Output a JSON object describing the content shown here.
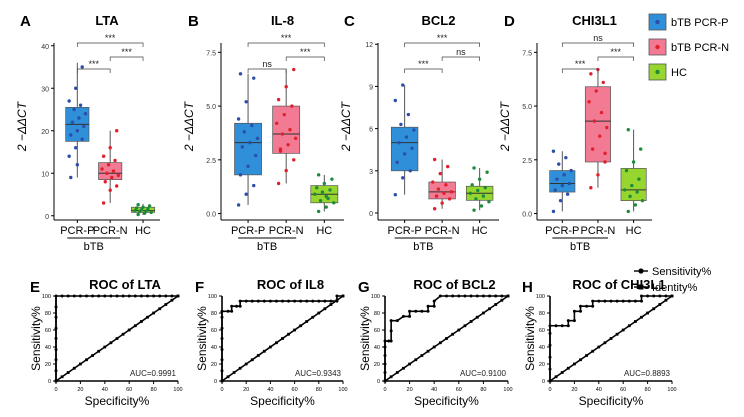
{
  "legend": {
    "items": [
      {
        "label": "bTB PCR-P",
        "color": "#2f8fd8",
        "dot": "#2b4fa8"
      },
      {
        "label": "bTB PCR-N",
        "color": "#f27a93",
        "dot": "#e2202c"
      },
      {
        "label": "HC",
        "color": "#96d62f",
        "dot": "#1f8b3a"
      }
    ]
  },
  "roc_legend": {
    "sensitivity": "Sensitivity%",
    "identity": "Identity%"
  },
  "chart_data": [
    {
      "type": "box",
      "panel": "A",
      "title": "LTA",
      "ylabel": "2 −ΔΔCT",
      "ylim": [
        -1,
        43
      ],
      "yticks": [
        "0",
        "10",
        "20",
        "30",
        "40"
      ],
      "ytick_values": [
        0,
        10,
        20,
        30,
        40
      ],
      "categories": [
        "PCR-P",
        "PCR-N",
        "HC"
      ],
      "group_label": "bTB",
      "boxes": [
        {
          "q1": 17.5,
          "median": 21.5,
          "q3": 25.5,
          "min": 9,
          "max": 36
        },
        {
          "q1": 8.5,
          "median": 10,
          "q3": 12.5,
          "min": 3,
          "max": 20
        },
        {
          "q1": 0.8,
          "median": 1.2,
          "q3": 2,
          "min": 0.2,
          "max": 2.8
        }
      ],
      "points": [
        [
          14,
          16,
          18,
          19,
          20,
          21,
          22,
          23,
          24,
          25,
          26,
          27,
          30,
          35,
          9,
          12
        ],
        [
          3,
          6,
          7,
          8,
          9,
          9.5,
          10,
          10.5,
          11,
          12,
          13,
          14,
          16,
          20
        ],
        [
          0.3,
          0.6,
          0.8,
          1,
          1.1,
          1.2,
          1.4,
          1.6,
          1.8,
          2,
          2.3,
          2.6
        ]
      ],
      "significance": [
        {
          "from": 0,
          "to": 2,
          "label": "***"
        },
        {
          "from": 0,
          "to": 1,
          "label": "***"
        },
        {
          "from": 1,
          "to": 2,
          "label": "***"
        }
      ]
    },
    {
      "type": "box",
      "panel": "B",
      "title": "IL-8",
      "ylabel": "2 −ΔΔCT",
      "ylim": [
        -0.3,
        8.4
      ],
      "yticks": [
        "0.0",
        "2.5",
        "5.0",
        "7.5"
      ],
      "ytick_values": [
        0,
        2.5,
        5,
        7.5
      ],
      "categories": [
        "PCR-P",
        "PCR-N",
        "HC"
      ],
      "group_label": "bTB",
      "boxes": [
        {
          "q1": 1.8,
          "median": 3.3,
          "q3": 4.2,
          "min": 0.4,
          "max": 6.5
        },
        {
          "q1": 2.8,
          "median": 3.7,
          "q3": 5,
          "min": 1.4,
          "max": 6.7
        },
        {
          "q1": 0.5,
          "median": 0.9,
          "q3": 1.3,
          "min": 0.1,
          "max": 1.8
        }
      ],
      "points": [
        [
          0.4,
          0.9,
          1.3,
          1.8,
          2.2,
          2.7,
          3.1,
          3.3,
          3.5,
          3.8,
          4.1,
          4.4,
          5.2,
          6.3,
          6.5
        ],
        [
          1.4,
          2.0,
          2.5,
          2.9,
          3.2,
          3.5,
          3.7,
          3.9,
          4.2,
          4.6,
          5.0,
          5.3,
          5.9,
          6.7,
          3.0
        ],
        [
          0.1,
          0.3,
          0.5,
          0.6,
          0.7,
          0.9,
          1.0,
          1.1,
          1.2,
          1.4,
          1.6,
          1.8,
          0.8
        ]
      ],
      "significance": [
        {
          "from": 0,
          "to": 2,
          "label": "***"
        },
        {
          "from": 0,
          "to": 1,
          "label": "ns"
        },
        {
          "from": 1,
          "to": 2,
          "label": "***"
        }
      ]
    },
    {
      "type": "box",
      "panel": "C",
      "title": "BCL2",
      "ylabel": "2 −ΔΔCT",
      "ylim": [
        -0.5,
        12.8
      ],
      "yticks": [
        "0",
        "3",
        "6",
        "9",
        "12"
      ],
      "ytick_values": [
        0,
        3,
        6,
        9,
        12
      ],
      "categories": [
        "PCR-P",
        "PCR-N",
        "HC"
      ],
      "group_label": "bTB",
      "boxes": [
        {
          "q1": 3,
          "median": 5,
          "q3": 6.1,
          "min": 1.3,
          "max": 9.1
        },
        {
          "q1": 1,
          "median": 1.5,
          "q3": 2.2,
          "min": 0.3,
          "max": 3.8
        },
        {
          "q1": 0.9,
          "median": 1.4,
          "q3": 1.9,
          "min": 0.2,
          "max": 3.2
        }
      ],
      "points": [
        [
          1.3,
          2.5,
          3.0,
          3.6,
          4.2,
          4.6,
          5.0,
          5.4,
          5.9,
          6.3,
          7.0,
          8.0,
          9.1
        ],
        [
          0.3,
          0.7,
          1.0,
          1.2,
          1.4,
          1.5,
          1.7,
          2.0,
          2.2,
          2.8,
          3.3,
          3.8
        ],
        [
          0.2,
          0.5,
          0.8,
          1.0,
          1.2,
          1.4,
          1.6,
          1.8,
          2.0,
          2.4,
          2.9,
          3.2
        ]
      ],
      "significance": [
        {
          "from": 0,
          "to": 2,
          "label": "***"
        },
        {
          "from": 0,
          "to": 1,
          "label": "***"
        },
        {
          "from": 1,
          "to": 2,
          "label": "ns"
        }
      ]
    },
    {
      "type": "box",
      "panel": "D",
      "title": "CHI3L1",
      "ylabel": "2 −ΔΔCT",
      "ylim": [
        -0.3,
        8.4
      ],
      "yticks": [
        "0.0",
        "2.5",
        "5.0",
        "7.5"
      ],
      "ytick_values": [
        0,
        2.5,
        5,
        7.5
      ],
      "categories": [
        "PCR-P",
        "PCR-N",
        "HC"
      ],
      "group_label": "bTB",
      "boxes": [
        {
          "q1": 1.0,
          "median": 1.4,
          "q3": 2.0,
          "min": 0.1,
          "max": 2.9
        },
        {
          "q1": 2.4,
          "median": 4.3,
          "q3": 5.9,
          "min": 1.2,
          "max": 6.7
        },
        {
          "q1": 0.6,
          "median": 1.1,
          "q3": 2.1,
          "min": 0.1,
          "max": 3.9
        }
      ],
      "points": [
        [
          0.1,
          0.6,
          0.9,
          1.1,
          1.3,
          1.4,
          1.6,
          1.8,
          2.0,
          2.3,
          2.6,
          2.9
        ],
        [
          1.2,
          1.8,
          2.4,
          3.0,
          3.6,
          4.0,
          4.3,
          4.7,
          5.2,
          5.7,
          6.1,
          6.5,
          6.7,
          2.8
        ],
        [
          0.1,
          0.4,
          0.6,
          0.8,
          1.0,
          1.1,
          1.3,
          1.6,
          2.0,
          2.4,
          3.0,
          3.9
        ]
      ],
      "significance": [
        {
          "from": 0,
          "to": 2,
          "label": "ns"
        },
        {
          "from": 0,
          "to": 1,
          "label": "***"
        },
        {
          "from": 1,
          "to": 2,
          "label": "***"
        }
      ]
    },
    {
      "type": "line",
      "panel": "E",
      "title": "ROC of LTA",
      "xlabel": "Specificity%",
      "ylabel": "Sensitivity%",
      "xlim": [
        0,
        100
      ],
      "ylim": [
        0,
        100
      ],
      "ticks": [
        "0",
        "20",
        "40",
        "60",
        "80",
        "100"
      ],
      "tick_values": [
        0,
        20,
        40,
        60,
        80,
        100
      ],
      "auc": "AUC=0.9991",
      "sensitivity_x": [
        0,
        0,
        0,
        0,
        0,
        0,
        0,
        0,
        0,
        5,
        10,
        15,
        20,
        25,
        30,
        35,
        40,
        45,
        50,
        55,
        60,
        65,
        70,
        75,
        80,
        85,
        90,
        95,
        100
      ],
      "sensitivity_y": [
        0,
        12,
        25,
        37,
        50,
        62,
        75,
        87,
        100,
        100,
        100,
        100,
        100,
        100,
        100,
        100,
        100,
        100,
        100,
        100,
        100,
        100,
        100,
        100,
        100,
        100,
        100,
        100,
        100
      ]
    },
    {
      "type": "line",
      "panel": "F",
      "title": "ROC of IL8",
      "xlabel": "Specificity%",
      "ylabel": "Sensitivity%",
      "xlim": [
        0,
        100
      ],
      "ylim": [
        0,
        100
      ],
      "ticks": [
        "0",
        "20",
        "40",
        "60",
        "80",
        "100"
      ],
      "tick_values": [
        0,
        20,
        40,
        60,
        80,
        100
      ],
      "auc": "AUC=0.9343",
      "sensitivity_x": [
        0,
        0,
        0,
        0,
        0,
        0,
        0,
        0,
        5,
        8,
        8,
        12,
        15,
        15,
        20,
        25,
        30,
        35,
        40,
        45,
        50,
        55,
        60,
        65,
        70,
        75,
        80,
        85,
        90,
        95,
        95,
        100
      ],
      "sensitivity_y": [
        0,
        12,
        25,
        37,
        50,
        62,
        75,
        82,
        82,
        82,
        88,
        88,
        88,
        94,
        94,
        94,
        94,
        94,
        94,
        94,
        94,
        94,
        94,
        94,
        94,
        94,
        94,
        94,
        94,
        94,
        100,
        100
      ]
    },
    {
      "type": "line",
      "panel": "G",
      "title": "ROC of  BCL2",
      "xlabel": "Specificity%",
      "ylabel": "Sensitivity%",
      "xlim": [
        0,
        100
      ],
      "ylim": [
        0,
        100
      ],
      "ticks": [
        "0",
        "20",
        "40",
        "60",
        "80",
        "100"
      ],
      "tick_values": [
        0,
        20,
        40,
        60,
        80,
        100
      ],
      "auc": "AUC=0.9100",
      "sensitivity_x": [
        0,
        0,
        0,
        0,
        0,
        0,
        3,
        5,
        5,
        5,
        10,
        15,
        20,
        20,
        25,
        30,
        35,
        35,
        40,
        40,
        45,
        50,
        55,
        60,
        65,
        70,
        75,
        80,
        85,
        90,
        95,
        100
      ],
      "sensitivity_y": [
        0,
        10,
        20,
        30,
        40,
        47,
        47,
        47,
        59,
        71,
        71,
        76,
        76,
        82,
        82,
        82,
        82,
        88,
        88,
        94,
        100,
        100,
        100,
        100,
        100,
        100,
        100,
        100,
        100,
        100,
        100,
        100
      ]
    },
    {
      "type": "line",
      "panel": "H",
      "title": "ROC of CHI3L1",
      "xlabel": "Specificity%",
      "ylabel": "Sensitivity%",
      "xlim": [
        0,
        100
      ],
      "ylim": [
        0,
        100
      ],
      "ticks": [
        "0",
        "20",
        "40",
        "60",
        "80",
        "100"
      ],
      "tick_values": [
        0,
        20,
        40,
        60,
        80,
        100
      ],
      "auc": "AUC=0.8893",
      "sensitivity_x": [
        0,
        0,
        0,
        0,
        0,
        0,
        5,
        10,
        15,
        15,
        20,
        20,
        25,
        25,
        30,
        35,
        35,
        40,
        45,
        50,
        55,
        60,
        65,
        70,
        75,
        75,
        80,
        85,
        90,
        95,
        100
      ],
      "sensitivity_y": [
        0,
        14,
        28,
        42,
        56,
        65,
        65,
        65,
        65,
        71,
        71,
        82,
        82,
        88,
        88,
        88,
        94,
        94,
        94,
        94,
        94,
        94,
        94,
        94,
        94,
        100,
        100,
        100,
        100,
        100,
        100
      ]
    }
  ]
}
